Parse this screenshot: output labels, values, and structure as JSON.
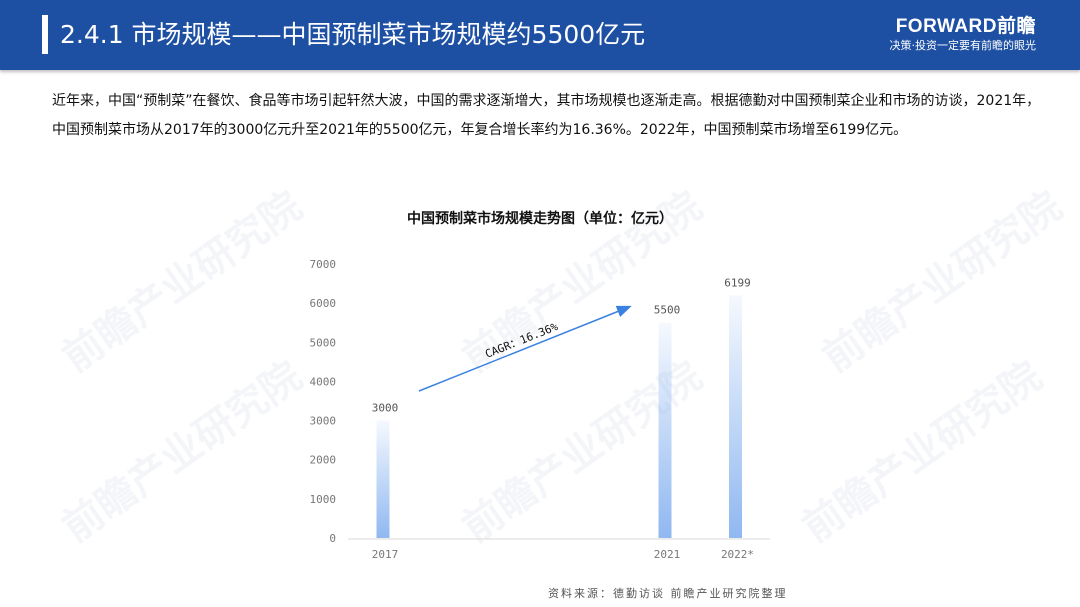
{
  "header": {
    "title": "2.4.1 市场规模——中国预制菜市场规模约5500亿元",
    "logo_brand": "FORWARD前瞻",
    "logo_slogan": "决策·投资一定要有前瞻的眼光"
  },
  "body_text": "近年来，中国“预制菜”在餐饮、食品等市场引起轩然大波，中国的需求逐渐增大，其市场规模也逐渐走高。根据德勤对中国预制菜企业和市场的访谈，2021年，中国预制菜市场从2017年的3000亿元升至2021年的5500亿元，年复合增长率约为16.36%。2022年，中国预制菜市场增至6199亿元。",
  "watermark": "前瞻产业研究院",
  "chart_data": {
    "type": "bar",
    "title": "中国预制菜市场规模走势图（单位：亿元）",
    "categories": [
      "2017",
      "2021",
      "2022*"
    ],
    "years": [
      2017,
      2021,
      2022
    ],
    "values": [
      3000,
      5500,
      6199
    ],
    "data_labels": [
      "3000",
      "5500",
      "6199"
    ],
    "ylim": [
      0,
      7000
    ],
    "yticks": [
      "0",
      "1000",
      "2000",
      "3000",
      "4000",
      "5000",
      "6000",
      "7000"
    ],
    "grid": false,
    "annotation": "CAGR：16.36%",
    "bar_color": "#8ab4f0",
    "arrow_color": "#3b82e0"
  },
  "source": "资料来源：德勤访谈 前瞻产业研究院整理"
}
